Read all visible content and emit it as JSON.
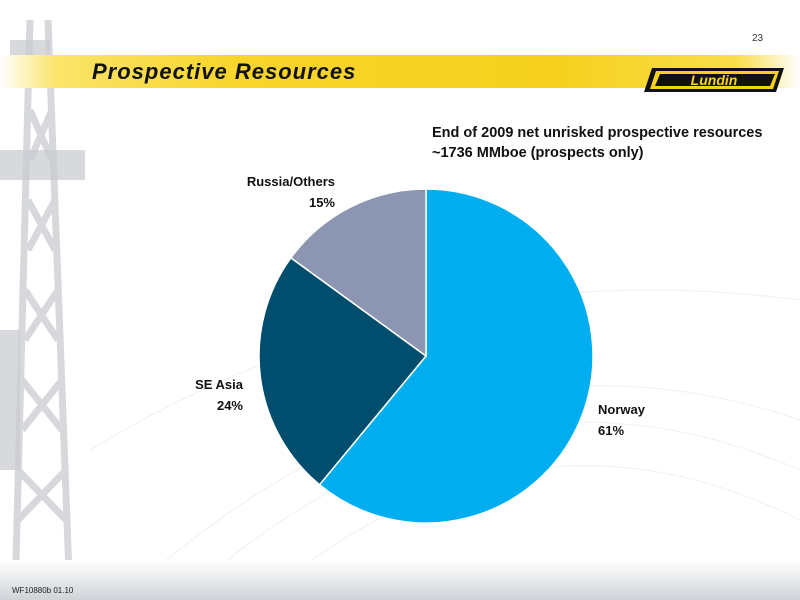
{
  "slide": {
    "title": "Prospective Resources",
    "page_number": "23",
    "footer_code": "WF10880b 01.10",
    "logo_text": "Lundin"
  },
  "colors": {
    "band": "#f6d11e",
    "norway": "#00aeef",
    "se_asia": "#004d6e",
    "russia_others": "#8c96b3"
  },
  "chart_data": {
    "type": "pie",
    "title_lines": [
      "End of 2009 net unrisked prospective resources",
      "~1736 MMboe (prospects only)"
    ],
    "slices": [
      {
        "name": "Norway",
        "value": 61,
        "label": "61%",
        "color": "#00aeef"
      },
      {
        "name": "SE Asia",
        "value": 24,
        "label": "24%",
        "color": "#004d6e"
      },
      {
        "name": "Russia/Others",
        "value": 15,
        "label": "15%",
        "color": "#8c96b3"
      }
    ]
  }
}
